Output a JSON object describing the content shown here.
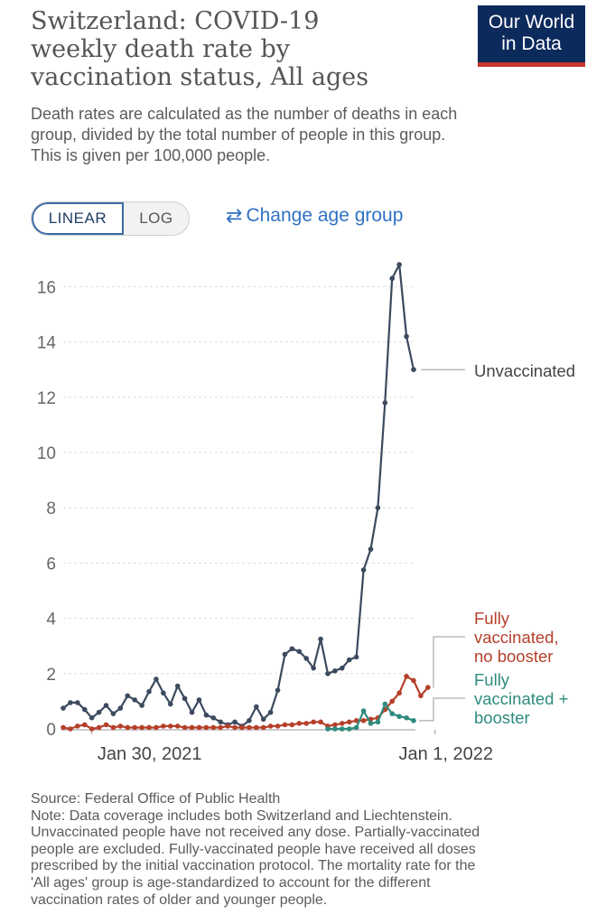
{
  "title_lines": [
    "Switzerland: COVID-19",
    "weekly death rate by",
    "vaccination status, All ages"
  ],
  "logo_lines": [
    "Our World",
    "in Data"
  ],
  "subtitle_lines": [
    "Death rates are calculated as the number of deaths in each",
    "group, divided by the total number of people in this group.",
    "This is given per 100,000 people."
  ],
  "controls": {
    "linear_label": "LINEAR",
    "log_label": "LOG",
    "change_age_label": "Change age group",
    "change_age_icon": "swap-arrows-icon"
  },
  "colors": {
    "unvaccinated": "#3c4a5e",
    "no_booster": "#b5402a",
    "booster": "#2e8b7e",
    "logo_bg": "#0d2a5c",
    "logo_accent": "#c8352b",
    "link": "#2f72c4"
  },
  "chart_data": {
    "type": "line",
    "title": "Switzerland: COVID-19 weekly death rate by vaccination status, All ages",
    "ylabel": "",
    "xlabel": "",
    "ylim": [
      0,
      17
    ],
    "yticks": [
      0,
      2,
      4,
      6,
      8,
      10,
      12,
      14,
      16
    ],
    "x_tick_labels": [
      {
        "label": "Jan 30, 2021",
        "week_index": 4
      },
      {
        "label": "Jan 1, 2022",
        "week_index": 52
      }
    ],
    "grid": true,
    "x": [
      0,
      1,
      2,
      3,
      4,
      5,
      6,
      7,
      8,
      9,
      10,
      11,
      12,
      13,
      14,
      15,
      16,
      17,
      18,
      19,
      20,
      21,
      22,
      23,
      24,
      25,
      26,
      27,
      28,
      29,
      30,
      31,
      32,
      33,
      34,
      35,
      36,
      37,
      38,
      39,
      40,
      41,
      42,
      43,
      44,
      45,
      46,
      47,
      48,
      49,
      50,
      51,
      52,
      53,
      54,
      55,
      56,
      57,
      58,
      59,
      60
    ],
    "series": [
      {
        "name": "Unvaccinated",
        "legend_lines": [
          "Unvaccinated"
        ],
        "color_key": "unvaccinated",
        "values": [
          0.75,
          0.95,
          0.95,
          0.7,
          0.4,
          0.6,
          0.85,
          0.55,
          0.75,
          1.2,
          1.05,
          0.85,
          1.35,
          1.8,
          1.3,
          0.9,
          1.55,
          1.1,
          0.6,
          1.05,
          0.5,
          0.4,
          0.25,
          0.15,
          0.25,
          0.1,
          0.3,
          0.8,
          0.35,
          0.6,
          1.4,
          2.7,
          2.9,
          2.8,
          2.55,
          2.2,
          3.25,
          2.0,
          2.1,
          2.2,
          2.5,
          2.6,
          5.75,
          6.5,
          8.0,
          11.8,
          16.3,
          16.8,
          14.2,
          13.0,
          null,
          null,
          null,
          null,
          null,
          null,
          null,
          null,
          null,
          null,
          null
        ]
      },
      {
        "name": "Fully vaccinated, no booster",
        "legend_lines": [
          "Fully",
          "vaccinated,",
          "no booster"
        ],
        "color_key": "no_booster",
        "values": [
          0.05,
          0.0,
          0.1,
          0.15,
          0.0,
          0.05,
          0.15,
          0.05,
          0.1,
          0.05,
          0.05,
          0.05,
          0.05,
          0.05,
          0.1,
          0.1,
          0.1,
          0.05,
          0.05,
          0.05,
          0.05,
          0.05,
          0.05,
          0.1,
          0.05,
          0.05,
          0.05,
          0.05,
          0.05,
          0.1,
          0.1,
          0.15,
          0.15,
          0.2,
          0.2,
          0.25,
          0.25,
          0.1,
          0.15,
          0.2,
          0.25,
          0.3,
          0.3,
          0.35,
          0.4,
          0.7,
          1.0,
          1.3,
          1.9,
          1.75,
          1.2,
          1.5,
          null,
          null,
          null,
          null,
          null,
          null,
          null,
          null,
          null
        ]
      },
      {
        "name": "Fully vaccinated + booster",
        "legend_lines": [
          "Fully",
          "vaccinated +",
          "booster"
        ],
        "color_key": "booster",
        "values": [
          null,
          null,
          null,
          null,
          null,
          null,
          null,
          null,
          null,
          null,
          null,
          null,
          null,
          null,
          null,
          null,
          null,
          null,
          null,
          null,
          null,
          null,
          null,
          null,
          null,
          null,
          null,
          null,
          null,
          null,
          null,
          null,
          null,
          null,
          null,
          null,
          null,
          0.0,
          0.0,
          0.0,
          0.0,
          0.05,
          0.65,
          0.2,
          0.25,
          0.9,
          0.55,
          0.45,
          0.4,
          0.3,
          null,
          null,
          null,
          null,
          null,
          null,
          null,
          null,
          null,
          null,
          null
        ]
      }
    ]
  },
  "footer_lines": [
    "Source: Federal Office of Public Health",
    "Note: Data coverage includes both Switzerland and Liechtenstein.",
    "Unvaccinated people have not received any dose. Partially-vaccinated",
    "people are excluded. Fully-vaccinated people have received all doses",
    "prescribed by the initial vaccination protocol. The mortality rate for the",
    "'All ages' group is age-standardized to account for the different",
    "vaccination rates of older and younger people."
  ]
}
